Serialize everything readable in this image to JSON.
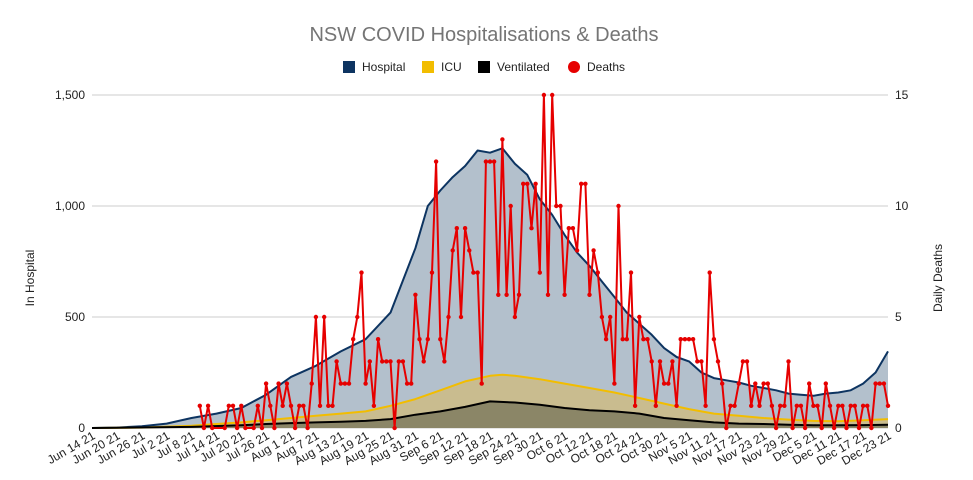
{
  "chart_data": {
    "type": "area",
    "title": "NSW COVID Hospitalisations & Deaths",
    "ylabel": "In Hospital",
    "y2label": "Daily Deaths",
    "ylim": [
      0,
      1500
    ],
    "y2lim": [
      0,
      15
    ],
    "ytick_labels": [
      "0",
      "500",
      "1,000",
      "1,500"
    ],
    "y2tick_labels": [
      "0",
      "5",
      "10",
      "15"
    ],
    "x_start": "2021-06-14",
    "x_end": "2021-12-23",
    "xtick_labels": [
      "Jun 14 21",
      "Jun 20 21",
      "Jun 26 21",
      "Jul 2 21",
      "Jul 8 21",
      "Jul 14 21",
      "Jul 20 21",
      "Jul 26 21",
      "Aug 1 21",
      "Aug 7 21",
      "Aug 13 21",
      "Aug 19 21",
      "Aug 25 21",
      "Aug 31 21",
      "Sep 6 21",
      "Sep 12 21",
      "Sep 18 21",
      "Sep 24 21",
      "Sep 30 21",
      "Oct 6 21",
      "Oct 12 21",
      "Oct 18 21",
      "Oct 24 21",
      "Oct 30 21",
      "Nov 5 21",
      "Nov 11 21",
      "Nov 17 21",
      "Nov 23 21",
      "Nov 29 21",
      "Dec 5 21",
      "Dec 11 21",
      "Dec 17 21",
      "Dec 23 21"
    ],
    "grid": true,
    "legend_position": "top",
    "series": [
      {
        "name": "Hospital",
        "color": "#0d3461",
        "fill": "#b3c0cc",
        "axis": "left",
        "points": [
          [
            "2021-06-14",
            0
          ],
          [
            "2021-06-20",
            2
          ],
          [
            "2021-06-26",
            8
          ],
          [
            "2021-07-02",
            20
          ],
          [
            "2021-07-08",
            45
          ],
          [
            "2021-07-14",
            65
          ],
          [
            "2021-07-20",
            90
          ],
          [
            "2021-07-26",
            150
          ],
          [
            "2021-08-01",
            230
          ],
          [
            "2021-08-07",
            280
          ],
          [
            "2021-08-13",
            345
          ],
          [
            "2021-08-19",
            400
          ],
          [
            "2021-08-25",
            520
          ],
          [
            "2021-08-31",
            810
          ],
          [
            "2021-09-03",
            1000
          ],
          [
            "2021-09-06",
            1070
          ],
          [
            "2021-09-09",
            1130
          ],
          [
            "2021-09-12",
            1180
          ],
          [
            "2021-09-15",
            1250
          ],
          [
            "2021-09-18",
            1240
          ],
          [
            "2021-09-21",
            1260
          ],
          [
            "2021-09-24",
            1190
          ],
          [
            "2021-09-27",
            1140
          ],
          [
            "2021-09-30",
            1030
          ],
          [
            "2021-10-03",
            960
          ],
          [
            "2021-10-06",
            870
          ],
          [
            "2021-10-09",
            790
          ],
          [
            "2021-10-12",
            730
          ],
          [
            "2021-10-15",
            660
          ],
          [
            "2021-10-18",
            590
          ],
          [
            "2021-10-21",
            520
          ],
          [
            "2021-10-24",
            470
          ],
          [
            "2021-10-27",
            420
          ],
          [
            "2021-10-30",
            360
          ],
          [
            "2021-11-02",
            320
          ],
          [
            "2021-11-05",
            300
          ],
          [
            "2021-11-08",
            250
          ],
          [
            "2021-11-11",
            225
          ],
          [
            "2021-11-14",
            215
          ],
          [
            "2021-11-17",
            205
          ],
          [
            "2021-11-20",
            190
          ],
          [
            "2021-11-23",
            180
          ],
          [
            "2021-11-26",
            170
          ],
          [
            "2021-11-29",
            155
          ],
          [
            "2021-12-02",
            150
          ],
          [
            "2021-12-05",
            145
          ],
          [
            "2021-12-08",
            155
          ],
          [
            "2021-12-11",
            160
          ],
          [
            "2021-12-14",
            170
          ],
          [
            "2021-12-17",
            200
          ],
          [
            "2021-12-20",
            250
          ],
          [
            "2021-12-23",
            345
          ]
        ]
      },
      {
        "name": "ICU",
        "color": "#f2bd00",
        "fill": "#c9bc8f",
        "axis": "left",
        "points": [
          [
            "2021-06-14",
            0
          ],
          [
            "2021-06-26",
            2
          ],
          [
            "2021-07-08",
            10
          ],
          [
            "2021-07-14",
            18
          ],
          [
            "2021-07-20",
            25
          ],
          [
            "2021-07-26",
            35
          ],
          [
            "2021-08-01",
            45
          ],
          [
            "2021-08-07",
            55
          ],
          [
            "2021-08-13",
            65
          ],
          [
            "2021-08-19",
            75
          ],
          [
            "2021-08-25",
            100
          ],
          [
            "2021-08-31",
            130
          ],
          [
            "2021-09-06",
            170
          ],
          [
            "2021-09-12",
            210
          ],
          [
            "2021-09-18",
            235
          ],
          [
            "2021-09-21",
            240
          ],
          [
            "2021-09-24",
            235
          ],
          [
            "2021-09-30",
            220
          ],
          [
            "2021-10-06",
            200
          ],
          [
            "2021-10-12",
            180
          ],
          [
            "2021-10-18",
            160
          ],
          [
            "2021-10-24",
            135
          ],
          [
            "2021-10-30",
            110
          ],
          [
            "2021-11-05",
            85
          ],
          [
            "2021-11-11",
            65
          ],
          [
            "2021-11-17",
            55
          ],
          [
            "2021-11-23",
            45
          ],
          [
            "2021-11-29",
            38
          ],
          [
            "2021-12-05",
            32
          ],
          [
            "2021-12-11",
            30
          ],
          [
            "2021-12-17",
            35
          ],
          [
            "2021-12-23",
            40
          ]
        ]
      },
      {
        "name": "Ventilated",
        "color": "#000000",
        "fill": "#8b8667",
        "axis": "left",
        "points": [
          [
            "2021-06-14",
            0
          ],
          [
            "2021-07-08",
            5
          ],
          [
            "2021-07-20",
            12
          ],
          [
            "2021-07-26",
            18
          ],
          [
            "2021-08-01",
            22
          ],
          [
            "2021-08-07",
            25
          ],
          [
            "2021-08-13",
            28
          ],
          [
            "2021-08-19",
            32
          ],
          [
            "2021-08-25",
            40
          ],
          [
            "2021-08-31",
            60
          ],
          [
            "2021-09-06",
            75
          ],
          [
            "2021-09-12",
            95
          ],
          [
            "2021-09-18",
            120
          ],
          [
            "2021-09-24",
            115
          ],
          [
            "2021-09-30",
            105
          ],
          [
            "2021-10-06",
            90
          ],
          [
            "2021-10-12",
            80
          ],
          [
            "2021-10-18",
            75
          ],
          [
            "2021-10-24",
            65
          ],
          [
            "2021-10-30",
            45
          ],
          [
            "2021-11-05",
            35
          ],
          [
            "2021-11-11",
            25
          ],
          [
            "2021-11-17",
            20
          ],
          [
            "2021-11-23",
            18
          ],
          [
            "2021-11-29",
            15
          ],
          [
            "2021-12-05",
            12
          ],
          [
            "2021-12-11",
            12
          ],
          [
            "2021-12-17",
            13
          ],
          [
            "2021-12-23",
            15
          ]
        ]
      },
      {
        "name": "Deaths",
        "color": "#e60000",
        "axis": "right",
        "marker": "dot",
        "points": [
          [
            "2021-07-10",
            1
          ],
          [
            "2021-07-11",
            0
          ],
          [
            "2021-07-12",
            1
          ],
          [
            "2021-07-13",
            0
          ],
          [
            "2021-07-16",
            0
          ],
          [
            "2021-07-17",
            1
          ],
          [
            "2021-07-18",
            1
          ],
          [
            "2021-07-19",
            0
          ],
          [
            "2021-07-20",
            1
          ],
          [
            "2021-07-21",
            0
          ],
          [
            "2021-07-23",
            0
          ],
          [
            "2021-07-24",
            1
          ],
          [
            "2021-07-25",
            0
          ],
          [
            "2021-07-26",
            2
          ],
          [
            "2021-07-27",
            1
          ],
          [
            "2021-07-28",
            0
          ],
          [
            "2021-07-29",
            2
          ],
          [
            "2021-07-30",
            1
          ],
          [
            "2021-07-31",
            2
          ],
          [
            "2021-08-01",
            1
          ],
          [
            "2021-08-02",
            0
          ],
          [
            "2021-08-03",
            1
          ],
          [
            "2021-08-04",
            1
          ],
          [
            "2021-08-05",
            0
          ],
          [
            "2021-08-06",
            2
          ],
          [
            "2021-08-07",
            5
          ],
          [
            "2021-08-08",
            1
          ],
          [
            "2021-08-09",
            5
          ],
          [
            "2021-08-10",
            1
          ],
          [
            "2021-08-11",
            1
          ],
          [
            "2021-08-12",
            3
          ],
          [
            "2021-08-13",
            2
          ],
          [
            "2021-08-14",
            2
          ],
          [
            "2021-08-15",
            2
          ],
          [
            "2021-08-16",
            4
          ],
          [
            "2021-08-17",
            5
          ],
          [
            "2021-08-18",
            7
          ],
          [
            "2021-08-19",
            2
          ],
          [
            "2021-08-20",
            3
          ],
          [
            "2021-08-21",
            1
          ],
          [
            "2021-08-22",
            4
          ],
          [
            "2021-08-23",
            3
          ],
          [
            "2021-08-24",
            3
          ],
          [
            "2021-08-25",
            3
          ],
          [
            "2021-08-26",
            0
          ],
          [
            "2021-08-27",
            3
          ],
          [
            "2021-08-28",
            3
          ],
          [
            "2021-08-29",
            2
          ],
          [
            "2021-08-30",
            2
          ],
          [
            "2021-08-31",
            6
          ],
          [
            "2021-09-01",
            4
          ],
          [
            "2021-09-02",
            3
          ],
          [
            "2021-09-03",
            4
          ],
          [
            "2021-09-04",
            7
          ],
          [
            "2021-09-05",
            12
          ],
          [
            "2021-09-06",
            4
          ],
          [
            "2021-09-07",
            3
          ],
          [
            "2021-09-08",
            5
          ],
          [
            "2021-09-09",
            8
          ],
          [
            "2021-09-10",
            9
          ],
          [
            "2021-09-11",
            5
          ],
          [
            "2021-09-12",
            9
          ],
          [
            "2021-09-13",
            8
          ],
          [
            "2021-09-14",
            7
          ],
          [
            "2021-09-15",
            7
          ],
          [
            "2021-09-16",
            2
          ],
          [
            "2021-09-17",
            12
          ],
          [
            "2021-09-18",
            12
          ],
          [
            "2021-09-19",
            12
          ],
          [
            "2021-09-20",
            6
          ],
          [
            "2021-09-21",
            13
          ],
          [
            "2021-09-22",
            6
          ],
          [
            "2021-09-23",
            10
          ],
          [
            "2021-09-24",
            5
          ],
          [
            "2021-09-25",
            6
          ],
          [
            "2021-09-26",
            11
          ],
          [
            "2021-09-27",
            11
          ],
          [
            "2021-09-28",
            9
          ],
          [
            "2021-09-29",
            11
          ],
          [
            "2021-09-30",
            7
          ],
          [
            "2021-10-01",
            15
          ],
          [
            "2021-10-02",
            6
          ],
          [
            "2021-10-03",
            15
          ],
          [
            "2021-10-04",
            10
          ],
          [
            "2021-10-05",
            10
          ],
          [
            "2021-10-06",
            6
          ],
          [
            "2021-10-07",
            9
          ],
          [
            "2021-10-08",
            9
          ],
          [
            "2021-10-09",
            8
          ],
          [
            "2021-10-10",
            11
          ],
          [
            "2021-10-11",
            11
          ],
          [
            "2021-10-12",
            6
          ],
          [
            "2021-10-13",
            8
          ],
          [
            "2021-10-14",
            7
          ],
          [
            "2021-10-15",
            5
          ],
          [
            "2021-10-16",
            4
          ],
          [
            "2021-10-17",
            5
          ],
          [
            "2021-10-18",
            2
          ],
          [
            "2021-10-19",
            10
          ],
          [
            "2021-10-20",
            4
          ],
          [
            "2021-10-21",
            4
          ],
          [
            "2021-10-22",
            7
          ],
          [
            "2021-10-23",
            1
          ],
          [
            "2021-10-24",
            5
          ],
          [
            "2021-10-25",
            4
          ],
          [
            "2021-10-26",
            4
          ],
          [
            "2021-10-27",
            3
          ],
          [
            "2021-10-28",
            1
          ],
          [
            "2021-10-29",
            3
          ],
          [
            "2021-10-30",
            2
          ],
          [
            "2021-10-31",
            2
          ],
          [
            "2021-11-01",
            3
          ],
          [
            "2021-11-02",
            1
          ],
          [
            "2021-11-03",
            4
          ],
          [
            "2021-11-04",
            4
          ],
          [
            "2021-11-05",
            4
          ],
          [
            "2021-11-06",
            4
          ],
          [
            "2021-11-07",
            3
          ],
          [
            "2021-11-08",
            3
          ],
          [
            "2021-11-09",
            1
          ],
          [
            "2021-11-10",
            7
          ],
          [
            "2021-11-11",
            4
          ],
          [
            "2021-11-12",
            3
          ],
          [
            "2021-11-13",
            2
          ],
          [
            "2021-11-14",
            0
          ],
          [
            "2021-11-15",
            1
          ],
          [
            "2021-11-16",
            1
          ],
          [
            "2021-11-17",
            2
          ],
          [
            "2021-11-18",
            3
          ],
          [
            "2021-11-19",
            3
          ],
          [
            "2021-11-20",
            1
          ],
          [
            "2021-11-21",
            2
          ],
          [
            "2021-11-22",
            1
          ],
          [
            "2021-11-23",
            2
          ],
          [
            "2021-11-24",
            2
          ],
          [
            "2021-11-25",
            1
          ],
          [
            "2021-11-26",
            0
          ],
          [
            "2021-11-27",
            1
          ],
          [
            "2021-11-28",
            1
          ],
          [
            "2021-11-29",
            3
          ],
          [
            "2021-11-30",
            0
          ],
          [
            "2021-12-01",
            1
          ],
          [
            "2021-12-02",
            1
          ],
          [
            "2021-12-03",
            0
          ],
          [
            "2021-12-04",
            2
          ],
          [
            "2021-12-05",
            1
          ],
          [
            "2021-12-06",
            1
          ],
          [
            "2021-12-07",
            0
          ],
          [
            "2021-12-08",
            2
          ],
          [
            "2021-12-09",
            1
          ],
          [
            "2021-12-10",
            0
          ],
          [
            "2021-12-11",
            1
          ],
          [
            "2021-12-12",
            1
          ],
          [
            "2021-12-13",
            0
          ],
          [
            "2021-12-14",
            1
          ],
          [
            "2021-12-15",
            1
          ],
          [
            "2021-12-16",
            0
          ],
          [
            "2021-12-17",
            1
          ],
          [
            "2021-12-18",
            1
          ],
          [
            "2021-12-19",
            0
          ],
          [
            "2021-12-20",
            2
          ],
          [
            "2021-12-21",
            2
          ],
          [
            "2021-12-22",
            2
          ],
          [
            "2021-12-23",
            1
          ]
        ]
      }
    ]
  }
}
